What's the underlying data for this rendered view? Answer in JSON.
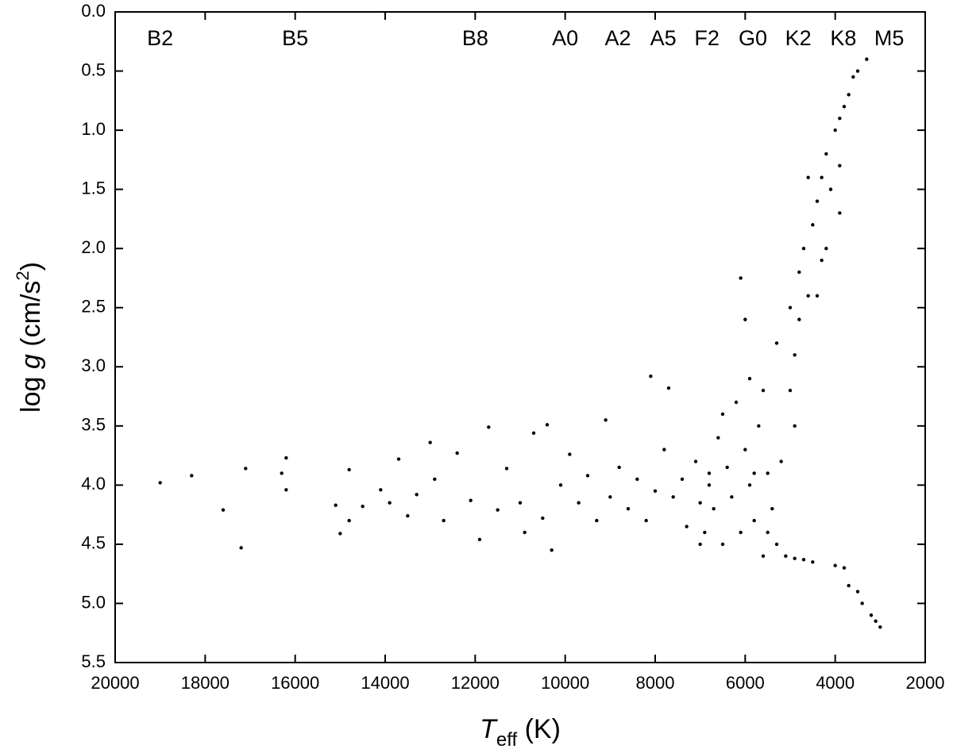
{
  "chart_data": {
    "type": "scatter",
    "xlabel": [
      "T",
      "eff",
      " (K)"
    ],
    "ylabel": [
      "log ",
      "g",
      " (cm/s",
      "2",
      ")"
    ],
    "xlim": [
      20000,
      2000
    ],
    "xticks": [
      20000,
      18000,
      16000,
      14000,
      12000,
      10000,
      8000,
      6000,
      4000,
      2000
    ],
    "ylim": [
      5.5,
      0
    ],
    "yticks": [
      {
        "value": 0,
        "label": "0.0"
      },
      0.5,
      {
        "value": 1,
        "label": "1.0"
      },
      1.5,
      {
        "value": 2,
        "label": "2.0"
      },
      2.5,
      {
        "value": 3,
        "label": "3.0"
      },
      3.5,
      {
        "value": 4,
        "label": "4.0"
      },
      4.5,
      {
        "value": 5,
        "label": "5.0"
      },
      5.5
    ],
    "annotations": [
      {
        "text": "B2",
        "x": 19000
      },
      {
        "text": "B5",
        "x": 16000
      },
      {
        "text": "B8",
        "x": 12000
      },
      {
        "text": "A0",
        "x": 10000
      },
      {
        "text": "A2",
        "x": 8830
      },
      {
        "text": "A5",
        "x": 7820
      },
      {
        "text": "F2",
        "x": 6850
      },
      {
        "text": "G0",
        "x": 5830
      },
      {
        "text": "K2",
        "x": 4820
      },
      {
        "text": "K8",
        "x": 3820
      },
      {
        "text": "M5",
        "x": 2800
      }
    ],
    "color": "#000000",
    "x": [
      19000,
      18300,
      17600,
      17200,
      17100,
      16200,
      16300,
      16200,
      15100,
      15000,
      14800,
      14800,
      14500,
      14100,
      13900,
      13700,
      13500,
      13300,
      13000,
      12900,
      12700,
      12400,
      12100,
      11900,
      11700,
      11500,
      11300,
      11000,
      10900,
      10700,
      10500,
      10400,
      10300,
      10100,
      9900,
      9700,
      9500,
      9300,
      9100,
      9000,
      8800,
      8600,
      8400,
      8200,
      8100,
      8000,
      7800,
      7700,
      7600,
      7400,
      7300,
      7100,
      7000,
      6900,
      6800,
      6700,
      6600,
      6500,
      6400,
      6300,
      6200,
      6100,
      6100,
      6000,
      6000,
      5900,
      5800,
      5700,
      5600,
      5500,
      5400,
      5300,
      5200,
      5100,
      5000,
      5000,
      4900,
      4900,
      4800,
      4800,
      4700,
      4700,
      4600,
      4500,
      4500,
      4400,
      4300,
      4300,
      4200,
      4100,
      4000,
      4000,
      3900,
      3900,
      3800,
      3800,
      3700,
      3700,
      3600,
      3500,
      3500,
      3400,
      3300,
      3200,
      3100,
      3000,
      5600,
      5300,
      6500,
      7000,
      5900,
      4400,
      4200,
      3900,
      6800,
      5800,
      5500,
      4900,
      4600
    ],
    "values": [
      3.98,
      3.92,
      4.21,
      4.53,
      3.86,
      3.77,
      3.9,
      4.04,
      4.17,
      4.41,
      3.87,
      4.3,
      4.18,
      4.04,
      4.15,
      3.78,
      4.26,
      4.08,
      3.64,
      3.95,
      4.3,
      3.73,
      4.13,
      4.46,
      3.51,
      4.21,
      3.86,
      4.15,
      4.4,
      3.56,
      4.28,
      3.49,
      4.55,
      4.0,
      3.74,
      4.15,
      3.92,
      4.3,
      3.45,
      4.1,
      3.85,
      4.2,
      3.95,
      4.3,
      3.08,
      4.05,
      3.7,
      3.18,
      4.1,
      3.95,
      4.35,
      3.8,
      4.15,
      4.4,
      3.9,
      4.2,
      3.6,
      4.5,
      3.85,
      4.1,
      3.3,
      2.25,
      4.4,
      3.7,
      2.6,
      4.0,
      4.3,
      3.5,
      4.6,
      3.9,
      4.2,
      4.5,
      3.8,
      4.6,
      2.5,
      3.2,
      2.9,
      4.62,
      2.6,
      2.2,
      2.0,
      4.63,
      2.4,
      1.8,
      4.65,
      1.6,
      2.1,
      1.4,
      1.2,
      1.5,
      1.0,
      4.68,
      0.9,
      1.3,
      0.8,
      4.7,
      0.7,
      4.85,
      0.55,
      4.9,
      0.5,
      5.0,
      0.4,
      5.1,
      5.15,
      5.2,
      3.2,
      2.8,
      3.4,
      4.5,
      3.1,
      2.4,
      2.0,
      1.7,
      4.0,
      3.9,
      4.4,
      3.5,
      1.4
    ]
  }
}
